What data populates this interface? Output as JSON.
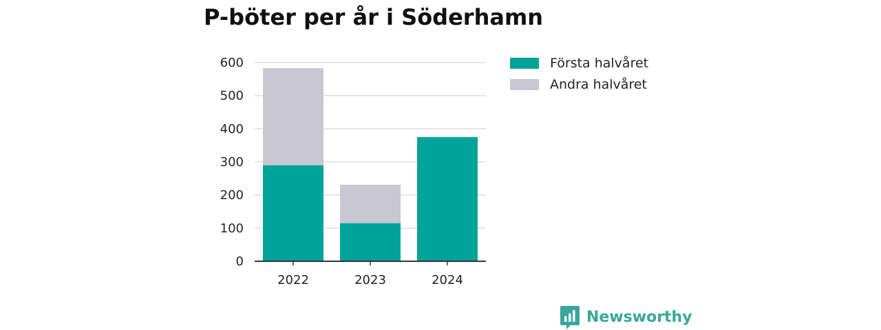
{
  "colors": {
    "first_half": "#00a39a",
    "second_half": "#c8c7d2",
    "grid": "#dddddd",
    "axis": "#333333",
    "brand": "#3aa69b"
  },
  "brand": {
    "name": "Newsworthy",
    "icon": "bar-chart-speech-bubble-icon"
  },
  "chart_data": {
    "type": "bar",
    "stacked": true,
    "title": "P-böter per år i Söderhamn",
    "categories": [
      "2022",
      "2023",
      "2024"
    ],
    "series": [
      {
        "name": "Första halvåret",
        "values": [
          290,
          115,
          375
        ]
      },
      {
        "name": "Andra halvåret",
        "values": [
          293,
          116,
          0
        ]
      }
    ],
    "ylim": [
      0,
      600
    ],
    "yticks": [
      0,
      100,
      200,
      300,
      400,
      500,
      600
    ],
    "xlabel": "",
    "ylabel": "",
    "grid": true,
    "legend_position": "right"
  }
}
